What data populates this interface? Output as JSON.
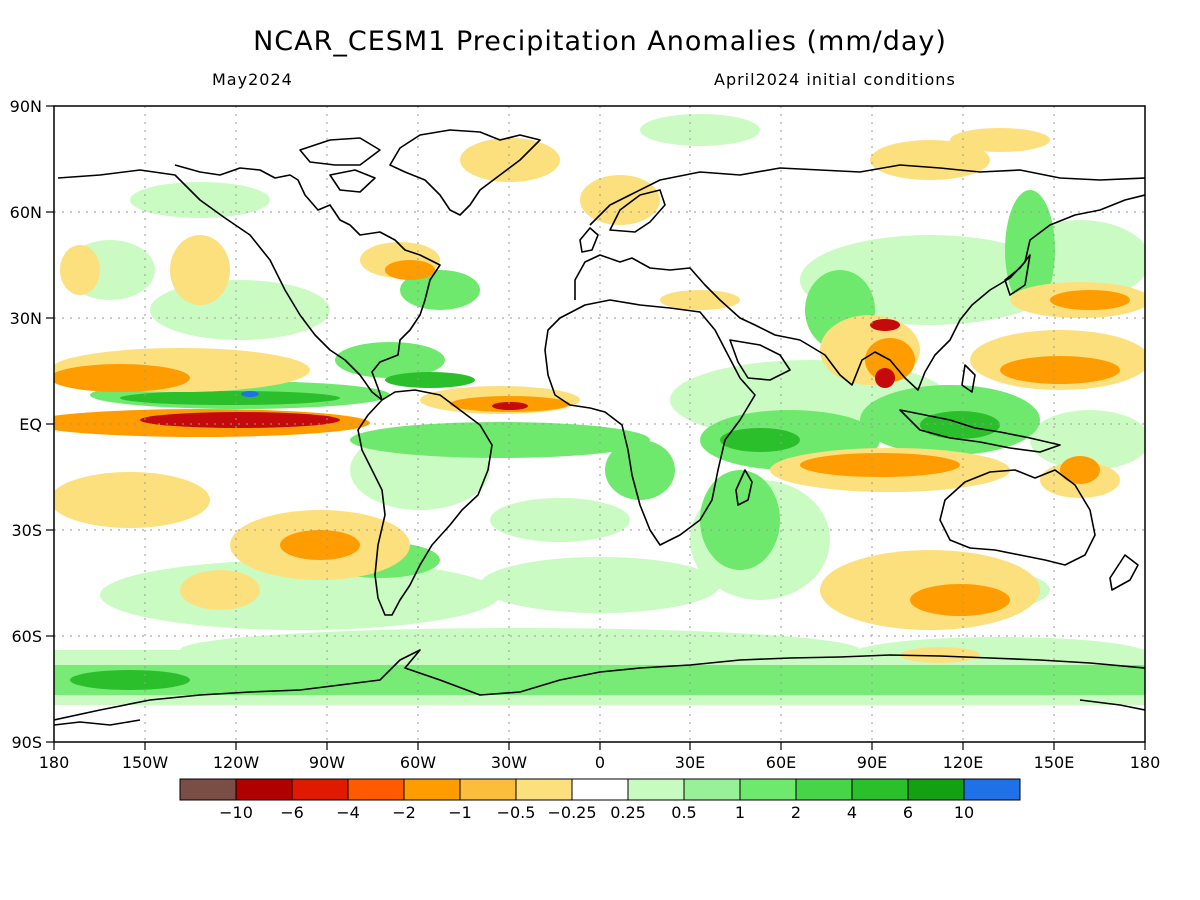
{
  "title": "NCAR_CESM1 Precipitation Anomalies (mm/day)",
  "valid_month": "May2024",
  "init_conditions": "April2024 initial conditions",
  "map": {
    "lon_ticks": [
      "180",
      "150W",
      "120W",
      "90W",
      "60W",
      "30W",
      "0",
      "30E",
      "60E",
      "90E",
      "120E",
      "150E",
      "180"
    ],
    "lat_ticks": [
      "90N",
      "60N",
      "30N",
      "EQ",
      "30S",
      "60S",
      "90S"
    ],
    "grid": true,
    "projection": "equirectangular",
    "lon_range": [
      -180,
      180
    ],
    "lat_range": [
      -90,
      90
    ]
  },
  "colorbar": {
    "labels": [
      "−10",
      "−6",
      "−4",
      "−2",
      "−1",
      "−0.5",
      "−0.25",
      "0.25",
      "0.5",
      "1",
      "2",
      "4",
      "6",
      "10"
    ],
    "colors": [
      "#7a4e45",
      "#b00000",
      "#e01a00",
      "#ff5a00",
      "#ff9c00",
      "#fdbd3c",
      "#fde07e",
      "#ffffff",
      "#c8fbc0",
      "#98f098",
      "#6fe86e",
      "#48d448",
      "#2cbf2c",
      "#13a013",
      "#2070e8"
    ]
  },
  "colors": {
    "dry_strong": "#c40a0a",
    "dry_mid": "#ff8a00",
    "dry_weak": "#fde07e",
    "wet_weak": "#c8fbc0",
    "wet_mid": "#6fe86e",
    "wet_strong": "#2cbf2c",
    "wet_max": "#2070e8",
    "coast": "#000000"
  }
}
